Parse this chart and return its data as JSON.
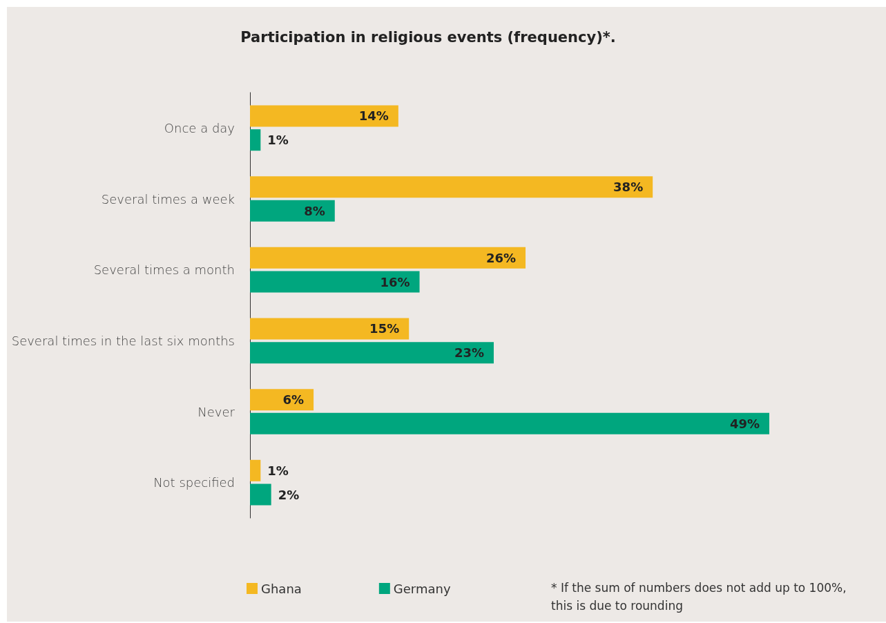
{
  "chart_data": {
    "type": "bar",
    "orientation": "horizontal",
    "title": "Participation in religious events (frequency)*.",
    "categories": [
      "Once a day",
      "Several times a week",
      "Several times a month",
      "Several times in the last six months",
      "Never",
      "Not specified"
    ],
    "series": [
      {
        "name": "Ghana",
        "color": "#f4b822",
        "values": [
          14,
          38,
          26,
          15,
          6,
          1
        ],
        "value_labels": [
          "14%",
          "38%",
          "26%",
          "15%",
          "6%",
          "1%"
        ]
      },
      {
        "name": "Germany",
        "color": "#00a67e",
        "values": [
          1,
          8,
          16,
          23,
          49,
          2
        ],
        "value_labels": [
          "1%",
          "8%",
          "16%",
          "23%",
          "49%",
          "2%"
        ]
      }
    ],
    "legend": "bottom left",
    "grid": false,
    "annotations": [
      "* If the sum of numbers does not add up to 100%, this is due to rounding"
    ]
  }
}
